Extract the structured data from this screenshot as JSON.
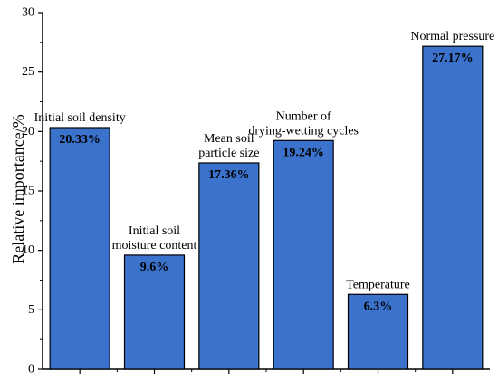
{
  "chart_data": {
    "type": "bar",
    "categories": [
      "Initial soil density",
      "Initial soil moisture content",
      "Mean soil particle size",
      "Number of drying-wetting cycles",
      "Temperature",
      "Normal pressure"
    ],
    "category_label_lines": [
      [
        "Initial soil density"
      ],
      [
        "Initial soil",
        "moisture content"
      ],
      [
        "Mean soil",
        "particle size"
      ],
      [
        "Number of",
        "drying-wetting cycles"
      ],
      [
        "Temperature"
      ],
      [
        "Normal pressure"
      ]
    ],
    "values": [
      20.33,
      9.6,
      17.36,
      19.24,
      6.3,
      27.17
    ],
    "value_labels": [
      "20.33%",
      "9.6%",
      "17.36%",
      "19.24%",
      "6.3%",
      "27.17%"
    ],
    "title": "",
    "xlabel": "",
    "ylabel": "Relative importance/%",
    "ylim": [
      0,
      30
    ],
    "yticks": [
      0,
      5,
      10,
      15,
      20,
      25,
      30
    ],
    "bar_color": "#3a72cc",
    "grid": false
  }
}
